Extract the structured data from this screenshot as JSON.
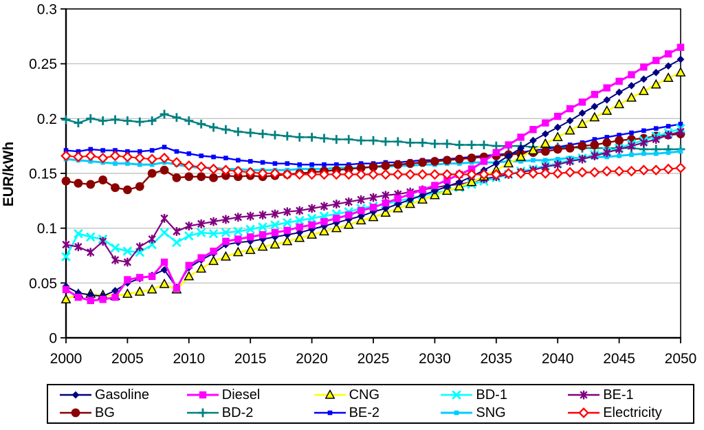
{
  "chart_data": {
    "type": "line",
    "title": "",
    "xlabel": "",
    "ylabel": "EUR/kWh",
    "xlim": [
      2000,
      2050
    ],
    "ylim": [
      0,
      0.3
    ],
    "grid": "horizontal",
    "gridline_color": "#b8b8b8",
    "legend_position": "bottom",
    "x_ticks": [
      2000,
      2005,
      2010,
      2015,
      2020,
      2025,
      2030,
      2035,
      2040,
      2045,
      2050
    ],
    "x_tick_labels": [
      "2000",
      "2005",
      "2010",
      "2015",
      "2020",
      "2025",
      "2030",
      "2035",
      "2040",
      "2045",
      "2050"
    ],
    "y_ticks": [
      0,
      0.05,
      0.1,
      0.15,
      0.2,
      0.25,
      0.3
    ],
    "y_tick_labels": [
      "0",
      "0.05",
      "0.1",
      "0.15",
      "0.2",
      "0.25",
      "0.3"
    ],
    "years": [
      2000,
      2001,
      2002,
      2003,
      2004,
      2005,
      2006,
      2007,
      2008,
      2009,
      2010,
      2011,
      2012,
      2013,
      2014,
      2015,
      2016,
      2017,
      2018,
      2019,
      2020,
      2021,
      2022,
      2023,
      2024,
      2025,
      2026,
      2027,
      2028,
      2029,
      2030,
      2031,
      2032,
      2033,
      2034,
      2035,
      2036,
      2037,
      2038,
      2039,
      2040,
      2041,
      2042,
      2043,
      2044,
      2045,
      2046,
      2047,
      2048,
      2049,
      2050
    ],
    "legend_rows": [
      [
        "Gasoline",
        "Diesel",
        "CNG",
        "BD-1",
        "BE-1"
      ],
      [
        "BG",
        "BD-2",
        "BE-2",
        "SNG",
        "Electricity"
      ]
    ],
    "draw_order": [
      "BD-2",
      "BE-2",
      "SNG",
      "BG",
      "BD-1",
      "BE-1",
      "CNG",
      "Gasoline",
      "Diesel",
      "Electricity"
    ],
    "series": [
      {
        "name": "Gasoline",
        "color": "#000080",
        "marker": "diamond",
        "line_width": 2,
        "values": [
          0.047,
          0.041,
          0.039,
          0.038,
          0.043,
          0.05,
          0.054,
          0.057,
          0.062,
          0.046,
          0.064,
          0.071,
          0.077,
          0.085,
          0.087,
          0.088,
          0.09,
          0.092,
          0.094,
          0.096,
          0.099,
          0.102,
          0.105,
          0.108,
          0.111,
          0.115,
          0.118,
          0.122,
          0.126,
          0.13,
          0.134,
          0.138,
          0.142,
          0.147,
          0.153,
          0.159,
          0.166,
          0.173,
          0.18,
          0.186,
          0.192,
          0.198,
          0.205,
          0.211,
          0.217,
          0.224,
          0.23,
          0.236,
          0.242,
          0.248,
          0.254
        ]
      },
      {
        "name": "Diesel",
        "color": "#FF00FF",
        "marker": "square",
        "line_width": 3,
        "values": [
          0.044,
          0.037,
          0.034,
          0.035,
          0.037,
          0.053,
          0.055,
          0.056,
          0.069,
          0.045,
          0.066,
          0.073,
          0.079,
          0.088,
          0.09,
          0.092,
          0.094,
          0.096,
          0.098,
          0.101,
          0.103,
          0.106,
          0.109,
          0.112,
          0.116,
          0.119,
          0.123,
          0.127,
          0.131,
          0.135,
          0.139,
          0.144,
          0.149,
          0.154,
          0.161,
          0.169,
          0.176,
          0.183,
          0.19,
          0.196,
          0.202,
          0.209,
          0.215,
          0.222,
          0.228,
          0.234,
          0.24,
          0.247,
          0.253,
          0.259,
          0.265
        ]
      },
      {
        "name": "CNG",
        "color": "#FFFF00",
        "marker": "triangle",
        "marker_stroke": "#000000",
        "line_width": 2.6,
        "values": [
          0.035,
          0.04,
          0.04,
          0.039,
          0.038,
          0.04,
          0.042,
          0.044,
          0.049,
          0.044,
          0.056,
          0.063,
          0.07,
          0.074,
          0.078,
          0.08,
          0.083,
          0.085,
          0.088,
          0.091,
          0.094,
          0.097,
          0.1,
          0.103,
          0.107,
          0.11,
          0.114,
          0.118,
          0.122,
          0.126,
          0.13,
          0.134,
          0.138,
          0.142,
          0.147,
          0.153,
          0.159,
          0.165,
          0.171,
          0.177,
          0.183,
          0.189,
          0.195,
          0.201,
          0.207,
          0.213,
          0.219,
          0.225,
          0.231,
          0.237,
          0.242
        ]
      },
      {
        "name": "BD-1",
        "color": "#00FFFF",
        "marker": "x",
        "line_width": 2.6,
        "values": [
          0.074,
          0.095,
          0.092,
          0.09,
          0.082,
          0.079,
          0.078,
          0.085,
          0.096,
          0.087,
          0.093,
          0.096,
          0.095,
          0.096,
          0.097,
          0.099,
          0.101,
          0.103,
          0.105,
          0.107,
          0.109,
          0.111,
          0.113,
          0.115,
          0.118,
          0.12,
          0.122,
          0.125,
          0.127,
          0.13,
          0.132,
          0.134,
          0.137,
          0.14,
          0.143,
          0.146,
          0.149,
          0.152,
          0.154,
          0.157,
          0.159,
          0.162,
          0.164,
          0.167,
          0.17,
          0.173,
          0.177,
          0.18,
          0.184,
          0.187,
          0.191
        ]
      },
      {
        "name": "BE-1",
        "color": "#800080",
        "marker": "star",
        "line_width": 2.2,
        "values": [
          0.085,
          0.083,
          0.078,
          0.088,
          0.071,
          0.069,
          0.083,
          0.09,
          0.109,
          0.097,
          0.102,
          0.104,
          0.106,
          0.108,
          0.11,
          0.111,
          0.112,
          0.113,
          0.115,
          0.116,
          0.118,
          0.12,
          0.122,
          0.124,
          0.126,
          0.128,
          0.13,
          0.131,
          0.133,
          0.135,
          0.137,
          0.139,
          0.14,
          0.142,
          0.145,
          0.147,
          0.149,
          0.151,
          0.153,
          0.156,
          0.158,
          0.161,
          0.163,
          0.166,
          0.169,
          0.172,
          0.175,
          0.178,
          0.181,
          0.185,
          0.188
        ]
      },
      {
        "name": "BG",
        "color": "#8B0000",
        "marker": "circle",
        "line_width": 2.4,
        "values": [
          0.143,
          0.141,
          0.14,
          0.144,
          0.137,
          0.135,
          0.138,
          0.15,
          0.153,
          0.146,
          0.147,
          0.147,
          0.146,
          0.148,
          0.147,
          0.148,
          0.147,
          0.148,
          0.149,
          0.15,
          0.151,
          0.152,
          0.153,
          0.154,
          0.155,
          0.156,
          0.157,
          0.158,
          0.159,
          0.16,
          0.161,
          0.162,
          0.163,
          0.164,
          0.165,
          0.166,
          0.167,
          0.168,
          0.169,
          0.17,
          0.172,
          0.173,
          0.175,
          0.176,
          0.178,
          0.18,
          0.181,
          0.182,
          0.184,
          0.185,
          0.186
        ]
      },
      {
        "name": "BD-2",
        "color": "#008080",
        "marker": "plus",
        "line_width": 2.4,
        "values": [
          0.199,
          0.196,
          0.2,
          0.198,
          0.199,
          0.198,
          0.197,
          0.198,
          0.204,
          0.201,
          0.198,
          0.195,
          0.192,
          0.19,
          0.188,
          0.187,
          0.186,
          0.185,
          0.184,
          0.183,
          0.183,
          0.182,
          0.181,
          0.181,
          0.18,
          0.18,
          0.179,
          0.179,
          0.178,
          0.178,
          0.177,
          0.177,
          0.176,
          0.176,
          0.176,
          0.175,
          0.175,
          0.175,
          0.174,
          0.174,
          0.174,
          0.174,
          0.173,
          0.173,
          0.173,
          0.173,
          0.173,
          0.172,
          0.172,
          0.172,
          0.172
        ]
      },
      {
        "name": "BE-2",
        "color": "#0000FF",
        "marker": "dash",
        "line_width": 2.4,
        "values": [
          0.171,
          0.17,
          0.172,
          0.171,
          0.171,
          0.17,
          0.17,
          0.171,
          0.174,
          0.17,
          0.168,
          0.166,
          0.165,
          0.164,
          0.162,
          0.161,
          0.16,
          0.159,
          0.159,
          0.158,
          0.158,
          0.158,
          0.158,
          0.158,
          0.159,
          0.159,
          0.16,
          0.16,
          0.161,
          0.162,
          0.162,
          0.163,
          0.164,
          0.165,
          0.166,
          0.167,
          0.168,
          0.169,
          0.171,
          0.172,
          0.174,
          0.176,
          0.178,
          0.181,
          0.183,
          0.185,
          0.187,
          0.189,
          0.191,
          0.193,
          0.195
        ]
      },
      {
        "name": "SNG",
        "color": "#00CCFF",
        "marker": "dash",
        "line_width": 3,
        "values": [
          0.163,
          0.162,
          0.161,
          0.16,
          0.159,
          0.159,
          0.158,
          0.158,
          0.16,
          0.158,
          0.156,
          0.155,
          0.155,
          0.154,
          0.154,
          0.153,
          0.153,
          0.153,
          0.153,
          0.154,
          0.154,
          0.154,
          0.155,
          0.155,
          0.155,
          0.156,
          0.156,
          0.157,
          0.157,
          0.158,
          0.158,
          0.159,
          0.159,
          0.16,
          0.16,
          0.16,
          0.161,
          0.161,
          0.162,
          0.162,
          0.163,
          0.164,
          0.164,
          0.165,
          0.165,
          0.166,
          0.167,
          0.168,
          0.168,
          0.169,
          0.17
        ]
      },
      {
        "name": "Electricity",
        "color": "#FF0000",
        "marker": "open-diamond",
        "marker_fill": "#ffffff",
        "line_width": 2,
        "values": [
          0.166,
          0.165,
          0.166,
          0.164,
          0.166,
          0.165,
          0.164,
          0.163,
          0.164,
          0.16,
          0.157,
          0.156,
          0.154,
          0.153,
          0.152,
          0.151,
          0.15,
          0.15,
          0.149,
          0.149,
          0.149,
          0.149,
          0.149,
          0.149,
          0.149,
          0.149,
          0.149,
          0.149,
          0.149,
          0.149,
          0.149,
          0.149,
          0.149,
          0.149,
          0.149,
          0.149,
          0.15,
          0.15,
          0.15,
          0.15,
          0.15,
          0.151,
          0.151,
          0.151,
          0.152,
          0.152,
          0.152,
          0.153,
          0.153,
          0.154,
          0.155
        ]
      }
    ]
  }
}
